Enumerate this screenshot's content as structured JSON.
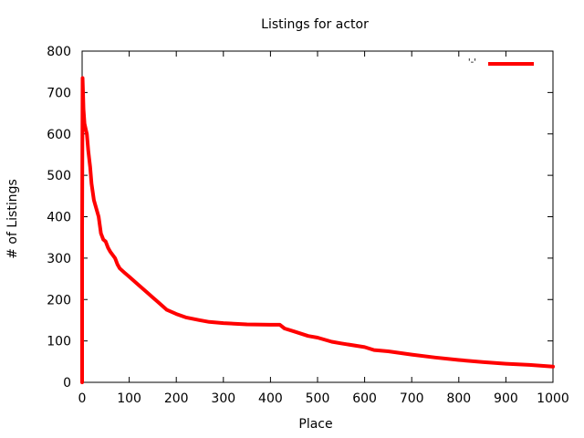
{
  "chart_data": {
    "type": "line",
    "title": "Listings for actor",
    "xlabel": "Place",
    "ylabel": "# of Listings",
    "xlim": [
      0,
      1000
    ],
    "ylim": [
      0,
      800
    ],
    "xticks": [
      0,
      100,
      200,
      300,
      400,
      500,
      600,
      700,
      800,
      900,
      1000
    ],
    "yticks": [
      0,
      100,
      200,
      300,
      400,
      500,
      600,
      700,
      800
    ],
    "grid": false,
    "legend_position": "top-right",
    "series": [
      {
        "name": "'-'",
        "color": "#ff0000",
        "points": [
          [
            0,
            0
          ],
          [
            0,
            370
          ],
          [
            1,
            735
          ],
          [
            2,
            700
          ],
          [
            3,
            660
          ],
          [
            5,
            625
          ],
          [
            8,
            610
          ],
          [
            10,
            600
          ],
          [
            13,
            560
          ],
          [
            17,
            520
          ],
          [
            20,
            480
          ],
          [
            25,
            440
          ],
          [
            30,
            420
          ],
          [
            35,
            400
          ],
          [
            40,
            360
          ],
          [
            45,
            345
          ],
          [
            50,
            340
          ],
          [
            55,
            325
          ],
          [
            60,
            315
          ],
          [
            70,
            300
          ],
          [
            75,
            285
          ],
          [
            80,
            275
          ],
          [
            90,
            265
          ],
          [
            100,
            255
          ],
          [
            120,
            235
          ],
          [
            140,
            215
          ],
          [
            150,
            205
          ],
          [
            160,
            195
          ],
          [
            180,
            175
          ],
          [
            200,
            165
          ],
          [
            220,
            157
          ],
          [
            250,
            150
          ],
          [
            270,
            146
          ],
          [
            300,
            143
          ],
          [
            350,
            140
          ],
          [
            400,
            139
          ],
          [
            420,
            139
          ],
          [
            430,
            130
          ],
          [
            450,
            123
          ],
          [
            480,
            112
          ],
          [
            500,
            108
          ],
          [
            530,
            98
          ],
          [
            550,
            94
          ],
          [
            600,
            85
          ],
          [
            620,
            78
          ],
          [
            650,
            75
          ],
          [
            700,
            67
          ],
          [
            750,
            60
          ],
          [
            800,
            54
          ],
          [
            850,
            49
          ],
          [
            900,
            45
          ],
          [
            950,
            42
          ],
          [
            1000,
            38
          ]
        ]
      }
    ]
  }
}
